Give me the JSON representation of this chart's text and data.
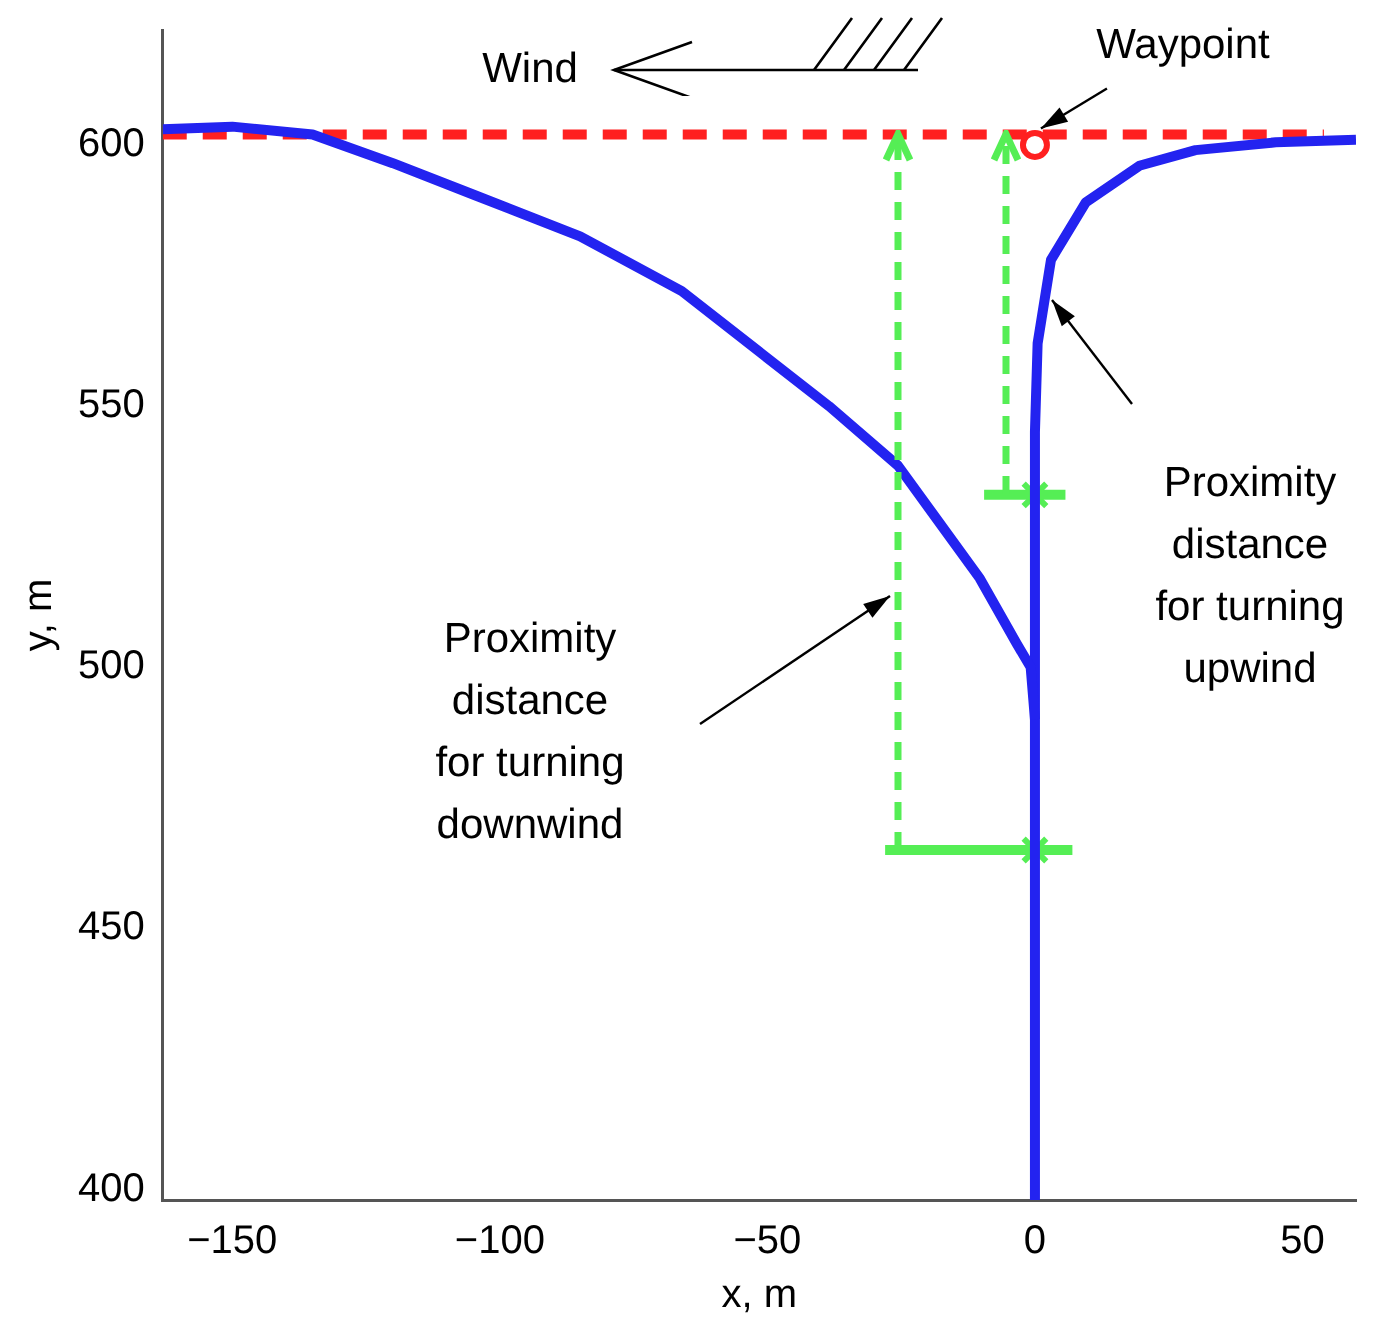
{
  "chart_data": {
    "type": "line",
    "xlabel": "x, m",
    "ylabel": "y, m",
    "xlim": [
      -163,
      60
    ],
    "ylim": [
      398,
      622
    ],
    "xticks": [
      {
        "value": -150,
        "label": "−150"
      },
      {
        "value": -100,
        "label": "−100"
      },
      {
        "value": -50,
        "label": "−50"
      },
      0,
      50
    ],
    "yticks": [
      400,
      450,
      500,
      550,
      600
    ],
    "grid": false,
    "legend": false,
    "series": [
      {
        "type": "line",
        "color": "#2323f0",
        "x": [
          -163,
          -150,
          -135,
          -120,
          -105,
          -85,
          -66,
          -51,
          -38.5,
          -25.6,
          -10.3,
          -3.4,
          -0.8,
          0
        ],
        "values": [
          603,
          603.5,
          602,
          596.5,
          590.5,
          582.5,
          572,
          560,
          550,
          538.6,
          517,
          504.5,
          500,
          490
        ],
        "marker": "none",
        "line_style": "solid"
      },
      {
        "type": "line",
        "color": "#2323f0",
        "x": [
          0,
          0,
          0.5,
          3,
          9.5,
          19.5,
          30,
          45,
          60
        ],
        "values": [
          398,
          545,
          562,
          578,
          589,
          596,
          599,
          600.5,
          601
        ],
        "marker": "none",
        "line_style": "solid"
      },
      {
        "type": "line",
        "color": "#ff2020",
        "x": [
          -163,
          54
        ],
        "values": [
          602,
          602
        ],
        "marker": "none",
        "line_style": "dashed"
      },
      {
        "type": "scatter",
        "color": "#ff2020",
        "x": [
          0
        ],
        "values": [
          600
        ],
        "marker": "circle"
      },
      {
        "type": "line",
        "color": "#55ee55",
        "x": [
          -28,
          7
        ],
        "values": [
          465,
          465
        ],
        "marker": "none",
        "line_style": "solid"
      },
      {
        "type": "line",
        "color": "#55ee55",
        "x": [
          -9.5,
          5.7
        ],
        "values": [
          533,
          533
        ],
        "marker": "none",
        "line_style": "solid"
      },
      {
        "type": "scatter",
        "color": "#55ee55",
        "x": [
          0,
          0
        ],
        "values": [
          465,
          533
        ],
        "marker": "cross"
      }
    ],
    "annotations": [
      "Wind",
      {
        "text": "Waypoint",
        "x": 0,
        "y": 602
      },
      "Proximity\ndistance\nfor turning\nupwind",
      "Proximity\ndistance\nfor turning\ndownwind"
    ]
  }
}
